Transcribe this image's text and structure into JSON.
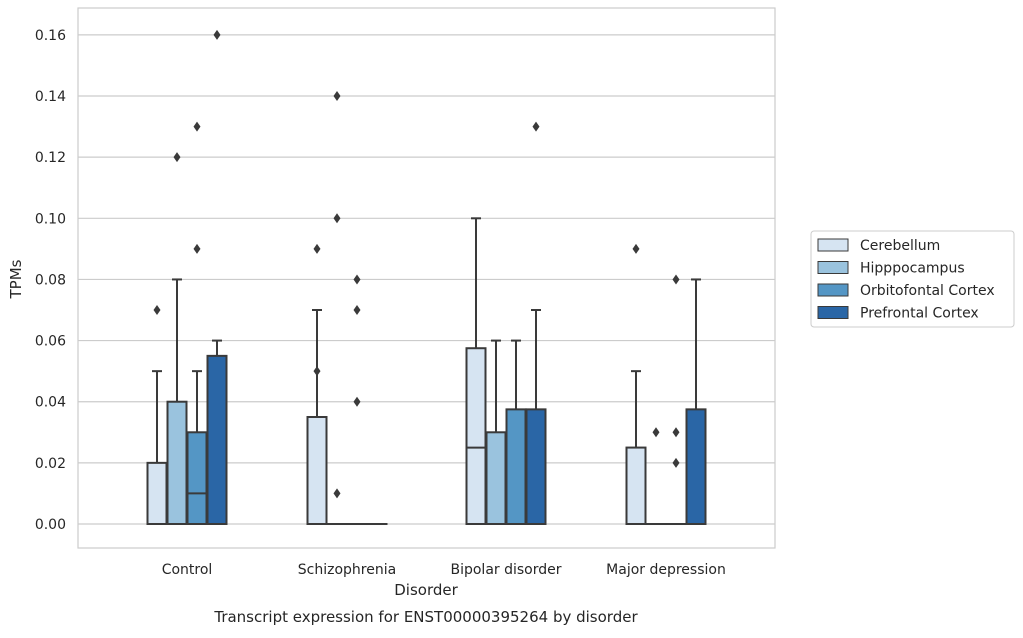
{
  "chart_data": {
    "type": "box",
    "title": "Transcript expression for ENST00000395264 by disorder",
    "xlabel": "Disorder",
    "ylabel": "TPMs",
    "ylim": [
      -0.008,
      0.168
    ],
    "yticks": [
      0.0,
      0.02,
      0.04,
      0.06,
      0.08,
      0.1,
      0.12,
      0.14,
      0.16
    ],
    "ytick_labels": [
      "0.00",
      "0.02",
      "0.04",
      "0.06",
      "0.08",
      "0.10",
      "0.12",
      "0.14",
      "0.16"
    ],
    "grid": "horizontal",
    "legend_position": "right",
    "categories": [
      "Control",
      "Schizophrenia",
      "Bipolar disorder",
      "Major depression"
    ],
    "series": [
      {
        "name": "Cerebellum",
        "color": "#d6e4f2",
        "boxes": [
          {
            "q1": 0.0,
            "median": 0.0,
            "q3": 0.02,
            "whisker_low": 0.0,
            "whisker_high": 0.05,
            "outliers": [
              0.07
            ]
          },
          {
            "q1": 0.0,
            "median": 0.0,
            "q3": 0.035,
            "whisker_low": 0.0,
            "whisker_high": 0.07,
            "outliers": [
              0.09,
              0.05
            ]
          },
          {
            "q1": 0.0,
            "median": 0.025,
            "q3": 0.0575,
            "whisker_low": 0.0,
            "whisker_high": 0.1,
            "outliers": []
          },
          {
            "q1": 0.0,
            "median": 0.0,
            "q3": 0.025,
            "whisker_low": 0.0,
            "whisker_high": 0.05,
            "outliers": [
              0.09
            ]
          }
        ]
      },
      {
        "name": "Hipppocampus",
        "color": "#9ac3de",
        "boxes": [
          {
            "q1": 0.0,
            "median": 0.0,
            "q3": 0.04,
            "whisker_low": 0.0,
            "whisker_high": 0.08,
            "outliers": [
              0.12
            ]
          },
          {
            "q1": 0.0,
            "median": 0.0,
            "q3": 0.0,
            "whisker_low": 0.0,
            "whisker_high": 0.0,
            "outliers": [
              0.14,
              0.1,
              0.01
            ]
          },
          {
            "q1": 0.0,
            "median": 0.0,
            "q3": 0.03,
            "whisker_low": 0.0,
            "whisker_high": 0.06,
            "outliers": []
          },
          {
            "q1": 0.0,
            "median": 0.0,
            "q3": 0.0,
            "whisker_low": 0.0,
            "whisker_high": 0.0,
            "outliers": [
              0.03
            ]
          }
        ]
      },
      {
        "name": "Orbitofontal Cortex",
        "color": "#5496c5",
        "boxes": [
          {
            "q1": 0.0,
            "median": 0.01,
            "q3": 0.03,
            "whisker_low": 0.0,
            "whisker_high": 0.05,
            "outliers": [
              0.13,
              0.09
            ]
          },
          {
            "q1": 0.0,
            "median": 0.0,
            "q3": 0.0,
            "whisker_low": 0.0,
            "whisker_high": 0.0,
            "outliers": [
              0.08,
              0.07,
              0.04
            ]
          },
          {
            "q1": 0.0,
            "median": 0.0,
            "q3": 0.0375,
            "whisker_low": 0.0,
            "whisker_high": 0.06,
            "outliers": []
          },
          {
            "q1": 0.0,
            "median": 0.0,
            "q3": 0.0,
            "whisker_low": 0.0,
            "whisker_high": 0.0,
            "outliers": [
              0.08,
              0.03,
              0.02
            ]
          }
        ]
      },
      {
        "name": "Prefrontal Cortex",
        "color": "#2a66a6",
        "boxes": [
          {
            "q1": 0.0,
            "median": 0.0,
            "q3": 0.055,
            "whisker_low": 0.0,
            "whisker_high": 0.06,
            "outliers": [
              0.16
            ]
          },
          {
            "q1": 0.0,
            "median": 0.0,
            "q3": 0.0,
            "whisker_low": 0.0,
            "whisker_high": 0.0,
            "outliers": []
          },
          {
            "q1": 0.0,
            "median": 0.0,
            "q3": 0.0375,
            "whisker_low": 0.0,
            "whisker_high": 0.07,
            "outliers": [
              0.13
            ]
          },
          {
            "q1": 0.0,
            "median": 0.0,
            "q3": 0.0375,
            "whisker_low": 0.0,
            "whisker_high": 0.08,
            "outliers": []
          }
        ]
      }
    ]
  }
}
